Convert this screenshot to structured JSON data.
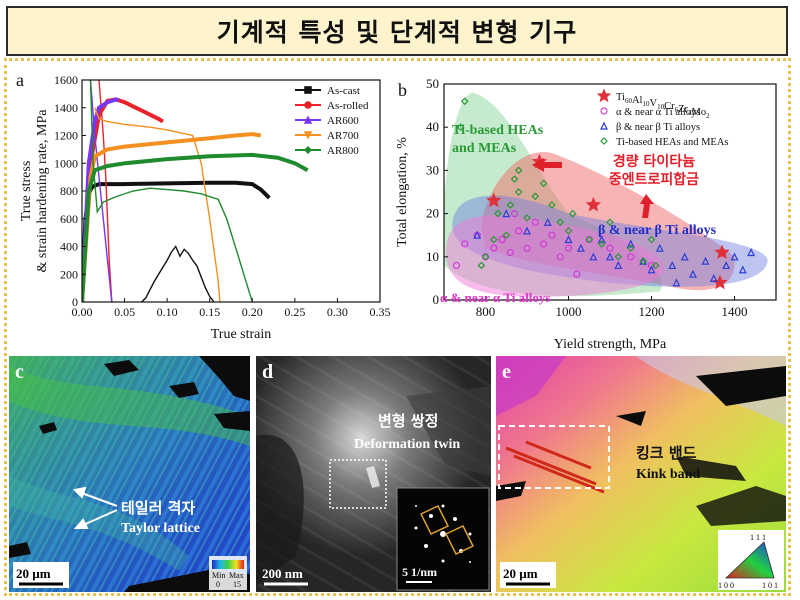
{
  "header": {
    "title": "기계적 특성 및 단계적 변형 기구"
  },
  "panel_a": {
    "letter": "a",
    "chart_data": {
      "type": "line",
      "xlabel": "True strain",
      "ylabel_line1": "True stress",
      "ylabel_line2": "& strain hardening rate, MPa",
      "xlim": [
        0,
        0.35
      ],
      "ylim": [
        0,
        1600
      ],
      "x_ticks": [
        "0.00",
        "0.05",
        "0.10",
        "0.15",
        "0.20",
        "0.25",
        "0.30",
        "0.35"
      ],
      "y_ticks": [
        "0",
        "200",
        "400",
        "600",
        "800",
        "1000",
        "1200",
        "1400",
        "1600"
      ],
      "grid": false,
      "legend_position": "top-right",
      "series": [
        {
          "name": "As-cast",
          "color": "#111111",
          "marker": "square",
          "stress": [
            [
              0.0,
              0
            ],
            [
              0.004,
              600
            ],
            [
              0.008,
              780
            ],
            [
              0.012,
              830
            ],
            [
              0.02,
              850
            ],
            [
              0.05,
              850
            ],
            [
              0.1,
              855
            ],
            [
              0.15,
              860
            ],
            [
              0.18,
              860
            ],
            [
              0.2,
              850
            ],
            [
              0.21,
              810
            ],
            [
              0.22,
              750
            ]
          ],
          "hardening": [
            [
              0.07,
              0
            ],
            [
              0.075,
              30
            ],
            [
              0.08,
              90
            ],
            [
              0.085,
              150
            ],
            [
              0.09,
              200
            ],
            [
              0.095,
              250
            ],
            [
              0.1,
              300
            ],
            [
              0.105,
              360
            ],
            [
              0.11,
              400
            ],
            [
              0.115,
              330
            ],
            [
              0.12,
              380
            ],
            [
              0.125,
              350
            ],
            [
              0.13,
              300
            ],
            [
              0.135,
              260
            ],
            [
              0.14,
              180
            ],
            [
              0.145,
              100
            ],
            [
              0.15,
              40
            ],
            [
              0.155,
              0
            ]
          ]
        },
        {
          "name": "As-rolled",
          "color": "#e8232a",
          "marker": "circle",
          "stress": [
            [
              0.0,
              0
            ],
            [
              0.01,
              1000
            ],
            [
              0.02,
              1350
            ],
            [
              0.03,
              1450
            ],
            [
              0.04,
              1460
            ],
            [
              0.05,
              1440
            ],
            [
              0.06,
              1410
            ],
            [
              0.07,
              1380
            ],
            [
              0.08,
              1350
            ],
            [
              0.09,
              1320
            ],
            [
              0.095,
              1300
            ]
          ],
          "hardening": [
            [
              0.02,
              1600
            ],
            [
              0.025,
              1200
            ],
            [
              0.028,
              900
            ],
            [
              0.03,
              600
            ],
            [
              0.032,
              300
            ],
            [
              0.035,
              0
            ]
          ]
        },
        {
          "name": "AR600",
          "color": "#7a35f0",
          "marker": "triangle",
          "stress": [
            [
              0.0,
              0
            ],
            [
              0.008,
              1000
            ],
            [
              0.015,
              1300
            ],
            [
              0.02,
              1400
            ],
            [
              0.03,
              1440
            ],
            [
              0.04,
              1460
            ],
            [
              0.043,
              1450
            ]
          ],
          "hardening": [
            [
              0.01,
              1600
            ],
            [
              0.015,
              1200
            ],
            [
              0.02,
              900
            ],
            [
              0.025,
              600
            ],
            [
              0.03,
              300
            ],
            [
              0.035,
              0
            ]
          ]
        },
        {
          "name": "AR700",
          "color": "#f58f1f",
          "marker": "inverted-triangle",
          "stress": [
            [
              0.0,
              0
            ],
            [
              0.01,
              900
            ],
            [
              0.015,
              1050
            ],
            [
              0.03,
              1100
            ],
            [
              0.05,
              1120
            ],
            [
              0.1,
              1150
            ],
            [
              0.15,
              1180
            ],
            [
              0.18,
              1200
            ],
            [
              0.2,
              1210
            ],
            [
              0.21,
              1200
            ]
          ],
          "hardening": [
            [
              0.015,
              1400
            ],
            [
              0.02,
              1320
            ],
            [
              0.03,
              1300
            ],
            [
              0.05,
              1280
            ],
            [
              0.08,
              1260
            ],
            [
              0.1,
              1240
            ],
            [
              0.13,
              1200
            ],
            [
              0.14,
              1000
            ],
            [
              0.15,
              600
            ],
            [
              0.16,
              150
            ],
            [
              0.162,
              0
            ]
          ]
        },
        {
          "name": "AR800",
          "color": "#1f8a2e",
          "marker": "diamond",
          "stress": [
            [
              0.0,
              0
            ],
            [
              0.008,
              800
            ],
            [
              0.015,
              950
            ],
            [
              0.03,
              980
            ],
            [
              0.05,
              1000
            ],
            [
              0.1,
              1030
            ],
            [
              0.15,
              1050
            ],
            [
              0.2,
              1060
            ],
            [
              0.23,
              1040
            ],
            [
              0.25,
              1000
            ],
            [
              0.265,
              950
            ]
          ],
          "hardening": [
            [
              0.01,
              1600
            ],
            [
              0.013,
              1000
            ],
            [
              0.018,
              650
            ],
            [
              0.025,
              720
            ],
            [
              0.04,
              760
            ],
            [
              0.06,
              800
            ],
            [
              0.08,
              820
            ],
            [
              0.1,
              810
            ],
            [
              0.12,
              800
            ],
            [
              0.14,
              780
            ],
            [
              0.16,
              740
            ],
            [
              0.17,
              600
            ],
            [
              0.18,
              400
            ],
            [
              0.19,
              200
            ],
            [
              0.2,
              0
            ]
          ]
        }
      ]
    }
  },
  "panel_b": {
    "letter": "b",
    "chart_data": {
      "type": "scatter",
      "xlabel": "Yield strength, MPa",
      "ylabel": "Total elongation, %",
      "xlim": [
        700,
        1500
      ],
      "ylim": [
        0,
        50
      ],
      "x_ticks": [
        "800",
        "1000",
        "1200",
        "1400"
      ],
      "y_ticks": [
        "0",
        "10",
        "20",
        "30",
        "40",
        "50"
      ],
      "legend_position": "top-right",
      "legend": [
        {
          "name_main": "Ti",
          "subs": [
            [
              "Ti",
              "60"
            ],
            [
              "Al",
              "10"
            ],
            [
              "V",
              "10"
            ],
            [
              "Cr",
              "6"
            ],
            [
              "Zr",
              "4"
            ],
            [
              "Mo",
              "2"
            ]
          ],
          "color": "#e0303a",
          "marker": "star"
        },
        {
          "name": "α & near α Ti alloys",
          "color": "#d23ad6",
          "marker": "circle"
        },
        {
          "name": "β & near β Ti alloys",
          "color": "#2b3ed6",
          "marker": "triangle"
        },
        {
          "name": "Ti-based HEAs and MEAs",
          "color": "#2a9a36",
          "marker": "diamond"
        }
      ],
      "series": [
        {
          "name": "Ti60Al10V10Cr6Zr4Mo2",
          "color": "#e0303a",
          "points": [
            [
              820,
              23
            ],
            [
              930,
              32
            ],
            [
              1060,
              22
            ],
            [
              1370,
              11
            ],
            [
              1365,
              4
            ]
          ]
        },
        {
          "name": "α & near α Ti alloys",
          "color": "#d23ad6",
          "points": [
            [
              750,
              13
            ],
            [
              780,
              15
            ],
            [
              800,
              10
            ],
            [
              820,
              12
            ],
            [
              840,
              14
            ],
            [
              860,
              11
            ],
            [
              880,
              16
            ],
            [
              900,
              12
            ],
            [
              920,
              18
            ],
            [
              940,
              13
            ],
            [
              960,
              15
            ],
            [
              980,
              10
            ],
            [
              1000,
              12
            ],
            [
              1020,
              6
            ],
            [
              1050,
              14
            ],
            [
              1100,
              12
            ],
            [
              1150,
              10
            ],
            [
              1200,
              8
            ],
            [
              730,
              8
            ],
            [
              870,
              20
            ]
          ]
        },
        {
          "name": "β & near β Ti alloys",
          "color": "#2b3ed6",
          "points": [
            [
              780,
              15
            ],
            [
              850,
              20
            ],
            [
              900,
              16
            ],
            [
              950,
              18
            ],
            [
              1000,
              14
            ],
            [
              1030,
              12
            ],
            [
              1060,
              10
            ],
            [
              1080,
              14
            ],
            [
              1100,
              10
            ],
            [
              1120,
              8
            ],
            [
              1150,
              13
            ],
            [
              1180,
              9
            ],
            [
              1200,
              7
            ],
            [
              1220,
              12
            ],
            [
              1250,
              8
            ],
            [
              1280,
              10
            ],
            [
              1300,
              6
            ],
            [
              1330,
              9
            ],
            [
              1350,
              5
            ],
            [
              1380,
              8
            ],
            [
              1400,
              10
            ],
            [
              1440,
              11
            ],
            [
              1420,
              7
            ],
            [
              1260,
              4
            ]
          ]
        },
        {
          "name": "Ti-based HEAs and MEAs",
          "color": "#2a9a36",
          "points": [
            [
              750,
              46
            ],
            [
              740,
              40
            ],
            [
              800,
              10
            ],
            [
              820,
              14
            ],
            [
              850,
              15
            ],
            [
              860,
              22
            ],
            [
              870,
              28
            ],
            [
              880,
              30
            ],
            [
              900,
              19
            ],
            [
              920,
              24
            ],
            [
              940,
              27
            ],
            [
              960,
              22
            ],
            [
              980,
              18
            ],
            [
              1000,
              16
            ],
            [
              1010,
              20
            ],
            [
              1050,
              14
            ],
            [
              1080,
              13
            ],
            [
              1100,
              18
            ],
            [
              1120,
              10
            ],
            [
              1150,
              12
            ],
            [
              1180,
              9
            ],
            [
              1200,
              14
            ],
            [
              1210,
              8
            ],
            [
              880,
              25
            ],
            [
              830,
              20
            ],
            [
              790,
              8
            ]
          ]
        }
      ],
      "region_labels": {
        "hea": [
          "Ti-based HEAs",
          "and MEAs"
        ],
        "korean": [
          "경량 타이타늄",
          "중엔트로피합금"
        ],
        "beta": "β & near β Ti alloys",
        "alpha": "α & near α Ti alloys"
      }
    }
  },
  "panel_c": {
    "letter": "c",
    "label_kr": "테일러 격자",
    "label_en": "Taylor lattice",
    "scale_bar": "20 µm",
    "colorbar": {
      "min_label": "Min",
      "max_label": "Max",
      "min_value": "0",
      "max_value": "15"
    }
  },
  "panel_d": {
    "letter": "d",
    "label_kr": "변형 쌍정",
    "label_en": "Deformation twin",
    "scale_bar": "200 nm",
    "inset_scale": "5 1/nm"
  },
  "panel_e": {
    "letter": "e",
    "label_kr": "킹크 밴드",
    "label_en": "Kink band",
    "scale_bar": "20 µm",
    "ipf": {
      "top": "1 1 1",
      "left": "1 0 0",
      "right": "1 0 1"
    }
  }
}
